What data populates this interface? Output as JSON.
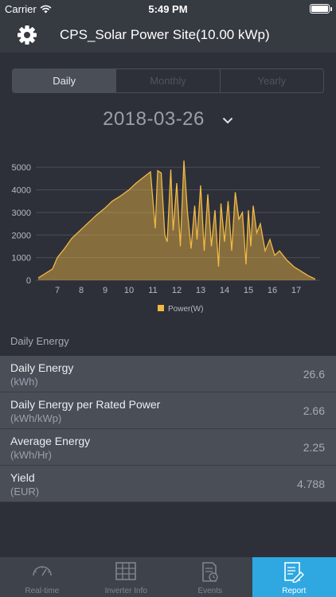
{
  "status_bar": {
    "carrier": "Carrier",
    "time": "5:49 PM"
  },
  "nav": {
    "title": "CPS_Solar Power Site(10.00 kWp)"
  },
  "segments": [
    {
      "label": "Daily",
      "active": true
    },
    {
      "label": "Monthly",
      "active": false
    },
    {
      "label": "Yearly",
      "active": false
    }
  ],
  "date": "2018-03-26",
  "chart_data": {
    "type": "area",
    "series": [
      {
        "name": "Power(W)",
        "color": "#f2b845"
      }
    ],
    "legend_position": "bottom-center",
    "grid": true,
    "xlim": [
      6.1,
      18.0
    ],
    "ylim": [
      0,
      5500
    ],
    "x_ticks": [
      "7",
      "8",
      "9",
      "10",
      "11",
      "12",
      "13",
      "14",
      "15",
      "16",
      "17"
    ],
    "y_ticks": [
      "0",
      "1000",
      "2000",
      "3000",
      "4000",
      "5000"
    ],
    "x": [
      6.2,
      6.5,
      6.8,
      7.0,
      7.3,
      7.6,
      8.0,
      8.3,
      8.6,
      9.0,
      9.3,
      9.6,
      10.0,
      10.3,
      10.6,
      10.9,
      11.1,
      11.2,
      11.35,
      11.5,
      11.6,
      11.75,
      11.85,
      12.0,
      12.15,
      12.3,
      12.45,
      12.6,
      12.75,
      12.85,
      13.0,
      13.15,
      13.3,
      13.45,
      13.6,
      13.75,
      13.85,
      14.0,
      14.15,
      14.3,
      14.45,
      14.6,
      14.75,
      14.9,
      15.0,
      15.1,
      15.2,
      15.35,
      15.5,
      15.7,
      15.9,
      16.1,
      16.3,
      16.6,
      16.9,
      17.2,
      17.5,
      17.8
    ],
    "values": [
      100,
      300,
      500,
      1000,
      1400,
      1850,
      2250,
      2550,
      2850,
      3200,
      3500,
      3700,
      4000,
      4300,
      4550,
      4800,
      2300,
      4850,
      4750,
      2000,
      1700,
      4900,
      2200,
      4300,
      1500,
      5300,
      3000,
      1400,
      3300,
      1800,
      4200,
      1300,
      3800,
      1500,
      3100,
      600,
      3400,
      1700,
      3500,
      1300,
      3900,
      2700,
      3000,
      700,
      3100,
      1500,
      3300,
      2100,
      2500,
      1300,
      1800,
      1100,
      1300,
      900,
      600,
      400,
      200,
      50
    ]
  },
  "section_header": "Daily Energy",
  "energy_rows": [
    {
      "label": "Daily Energy",
      "unit": "(kWh)",
      "value": "26.6"
    },
    {
      "label": "Daily Energy per Rated Power",
      "unit": "(kWh/kWp)",
      "value": "2.66"
    },
    {
      "label": "Average Energy",
      "unit": "(kWh/Hr)",
      "value": "2.25"
    },
    {
      "label": "Yield",
      "unit": "(EUR)",
      "value": "4.788"
    }
  ],
  "tabs": [
    {
      "label": "Real-time",
      "icon": "gauge-icon",
      "active": false
    },
    {
      "label": "Inverter Info",
      "icon": "grid-panel-icon",
      "active": false
    },
    {
      "label": "Events",
      "icon": "document-clock-icon",
      "active": false
    },
    {
      "label": "Report",
      "icon": "report-icon",
      "active": true
    }
  ]
}
